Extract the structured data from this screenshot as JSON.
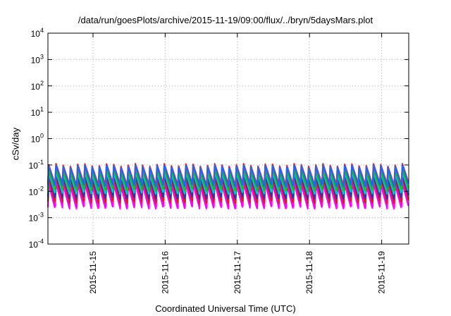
{
  "chart_data": {
    "type": "line",
    "title": "/data/run/goesPlots/archive/2015-11-19/09:00/flux/../bryn/5daysMars.plot",
    "xlabel": "Coordinated Universal Time (UTC)",
    "ylabel": "cSv/day",
    "yscale": "log",
    "ylim": [
      0.0001,
      10000
    ],
    "y_ticks": [
      {
        "label": "10",
        "exp": "-4"
      },
      {
        "label": "10",
        "exp": "-3"
      },
      {
        "label": "10",
        "exp": "-2"
      },
      {
        "label": "10",
        "exp": "-1"
      },
      {
        "label": "10",
        "exp": "0"
      },
      {
        "label": "10",
        "exp": "1"
      },
      {
        "label": "10",
        "exp": "2"
      },
      {
        "label": "10",
        "exp": "3"
      },
      {
        "label": "10",
        "exp": "4"
      }
    ],
    "xlim": [
      "2015-11-14T09:00",
      "2015-11-19T09:00"
    ],
    "x_ticks": [
      "2015-11-15",
      "2015-11-16",
      "2015-11-17",
      "2015-11-18",
      "2015-11-19"
    ],
    "grid": true,
    "legend": "none",
    "sawtooth_cycles": 50,
    "series": [
      {
        "color": "#ff00ff",
        "peak": 0.018,
        "trough": 0.0025
      },
      {
        "color": "#cc2222",
        "peak": 0.03,
        "trough": 0.004
      },
      {
        "color": "#3333aa",
        "peak": 0.04,
        "trough": 0.006
      },
      {
        "color": "#00cccc",
        "peak": 0.05,
        "trough": 0.009
      },
      {
        "color": "#22bb22",
        "peak": 0.06,
        "trough": 0.012
      },
      {
        "color": "#ee3333",
        "peak": 0.1,
        "trough": 0.02
      },
      {
        "color": "#2266ee",
        "peak": 0.09,
        "trough": 0.017
      }
    ]
  }
}
